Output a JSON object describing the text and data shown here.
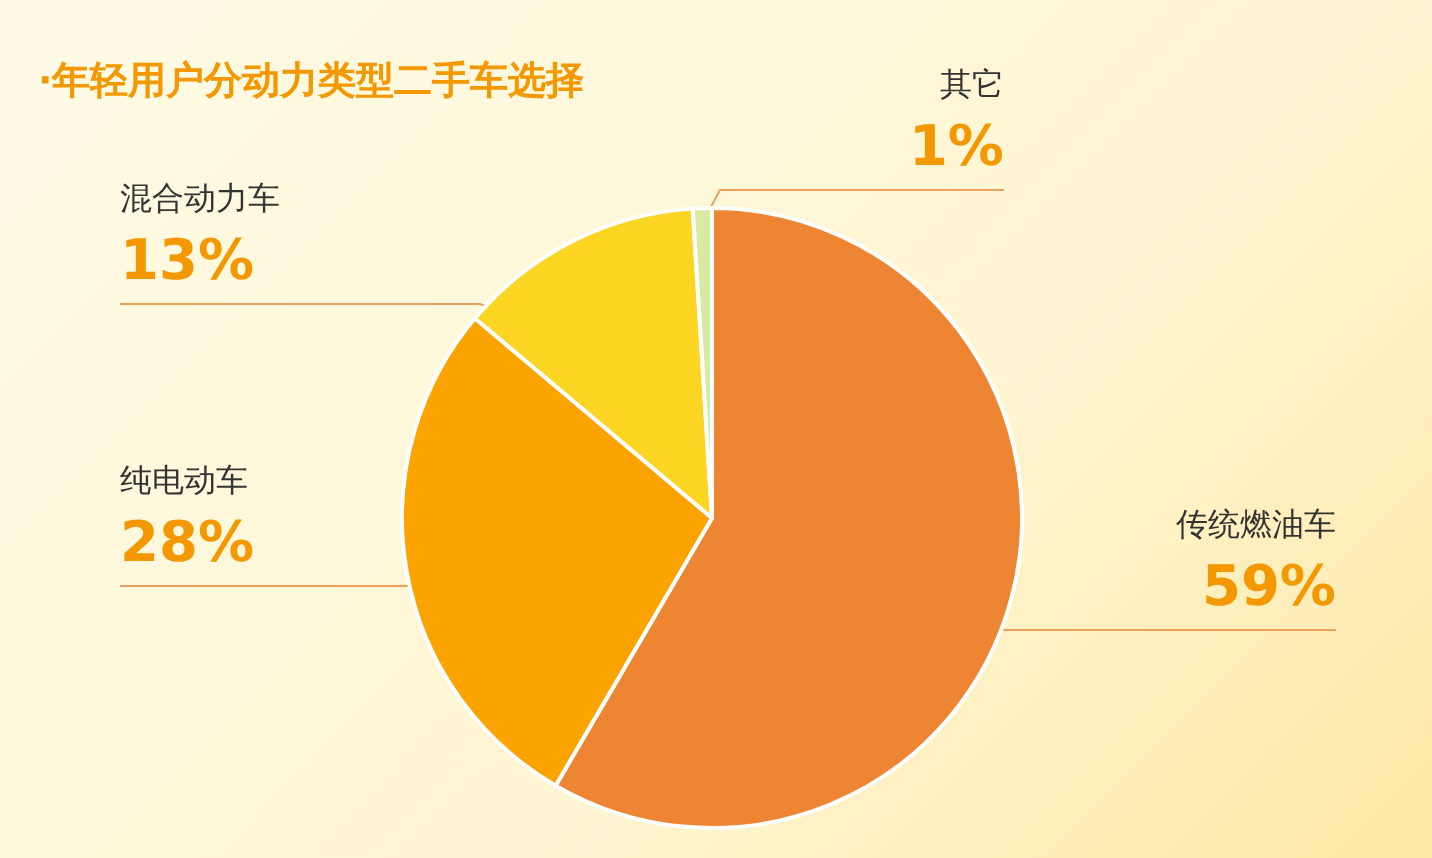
{
  "chart_data": {
    "type": "pie",
    "title": "·年轻用户分动力类型二手车选择",
    "categories": [
      "传统燃油车",
      "纯电动车",
      "混合动力车",
      "其它"
    ],
    "values": [
      59,
      28,
      13,
      1
    ],
    "colors": [
      "#ee8533",
      "#fba400",
      "#fdd523",
      "#d9eba3"
    ],
    "value_labels": [
      "59%",
      "28%",
      "13%",
      "1%"
    ],
    "legend": false
  }
}
